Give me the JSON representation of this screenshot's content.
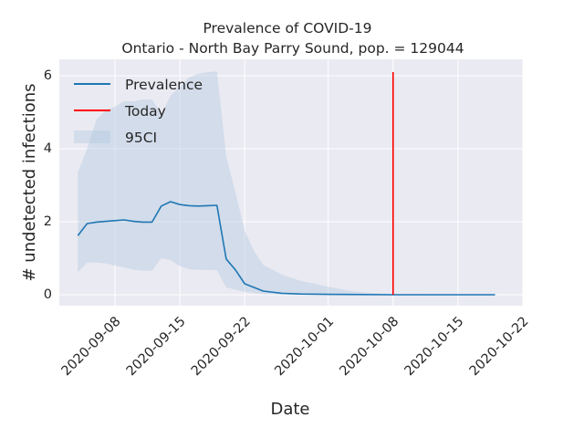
{
  "chart_data": {
    "type": "line",
    "title": "Prevalence of COVID-19",
    "subtitle": "Ontario - North Bay Parry Sound, pop. = 129044",
    "xlabel": "Date",
    "ylabel": "# undetected infections",
    "x_ticks": [
      "2020-09-08",
      "2020-09-15",
      "2020-09-22",
      "2020-10-01",
      "2020-10-08",
      "2020-10-15",
      "2020-10-22"
    ],
    "y_ticks": [
      "0",
      "2",
      "4",
      "6"
    ],
    "xlim": [
      "2020-09-02",
      "2020-10-22"
    ],
    "ylim": [
      -0.3,
      6.45
    ],
    "grid": true,
    "legend_position": "upper-left",
    "series": [
      {
        "name": "Prevalence",
        "color": "#1f77b4",
        "points": [
          [
            "2020-09-04",
            1.62
          ],
          [
            "2020-09-05",
            1.95
          ],
          [
            "2020-09-06",
            1.99
          ],
          [
            "2020-09-07",
            2.01
          ],
          [
            "2020-09-08",
            2.03
          ],
          [
            "2020-09-09",
            2.05
          ],
          [
            "2020-09-10",
            2.01
          ],
          [
            "2020-09-11",
            1.99
          ],
          [
            "2020-09-12",
            1.99
          ],
          [
            "2020-09-13",
            2.43
          ],
          [
            "2020-09-14",
            2.55
          ],
          [
            "2020-09-15",
            2.47
          ],
          [
            "2020-09-16",
            2.44
          ],
          [
            "2020-09-17",
            2.43
          ],
          [
            "2020-09-18",
            2.44
          ],
          [
            "2020-09-19",
            2.45
          ],
          [
            "2020-09-20",
            0.98
          ],
          [
            "2020-09-21",
            0.68
          ],
          [
            "2020-09-22",
            0.3
          ],
          [
            "2020-09-24",
            0.1
          ],
          [
            "2020-09-26",
            0.04
          ],
          [
            "2020-09-28",
            0.02
          ],
          [
            "2020-10-01",
            0.01
          ],
          [
            "2020-10-08",
            0.0
          ],
          [
            "2020-10-19",
            0.0
          ]
        ]
      },
      {
        "name": "Today",
        "color": "#ff0000",
        "x": "2020-10-08",
        "y_range": [
          0,
          6.1
        ]
      }
    ],
    "confidence_band": {
      "name": "95CI",
      "color": "#b0c8e0",
      "points": [
        [
          "2020-09-04",
          0.62,
          3.35
        ],
        [
          "2020-09-05",
          0.88,
          4.0
        ],
        [
          "2020-09-06",
          0.88,
          4.8
        ],
        [
          "2020-09-07",
          0.86,
          5.05
        ],
        [
          "2020-09-08",
          0.8,
          5.15
        ],
        [
          "2020-09-09",
          0.75,
          5.3
        ],
        [
          "2020-09-10",
          0.68,
          5.3
        ],
        [
          "2020-09-11",
          0.66,
          5.35
        ],
        [
          "2020-09-12",
          0.66,
          5.35
        ],
        [
          "2020-09-13",
          1.0,
          4.95
        ],
        [
          "2020-09-14",
          0.95,
          5.45
        ],
        [
          "2020-09-15",
          0.78,
          5.7
        ],
        [
          "2020-09-16",
          0.7,
          5.95
        ],
        [
          "2020-09-17",
          0.68,
          6.05
        ],
        [
          "2020-09-18",
          0.68,
          6.1
        ],
        [
          "2020-09-19",
          0.67,
          6.12
        ],
        [
          "2020-09-20",
          0.2,
          3.8
        ],
        [
          "2020-09-21",
          0.14,
          2.8
        ],
        [
          "2020-09-22",
          0.08,
          1.75
        ],
        [
          "2020-09-23",
          0.04,
          1.2
        ],
        [
          "2020-09-24",
          0.02,
          0.82
        ],
        [
          "2020-09-26",
          0.01,
          0.55
        ],
        [
          "2020-09-28",
          0.0,
          0.38
        ],
        [
          "2020-10-01",
          0.0,
          0.22
        ],
        [
          "2020-10-03",
          0.0,
          0.12
        ],
        [
          "2020-10-05",
          0.0,
          0.06
        ],
        [
          "2020-10-08",
          0.0,
          0.02
        ],
        [
          "2020-10-19",
          0.0,
          0.0
        ]
      ]
    },
    "legend": [
      "Prevalence",
      "Today",
      "95CI"
    ],
    "colors": {
      "background": "#eaeaf2",
      "grid": "#ffffff",
      "prevalence": "#1f77b4",
      "today": "#ff0000",
      "ci": "#b0c8e0"
    }
  }
}
